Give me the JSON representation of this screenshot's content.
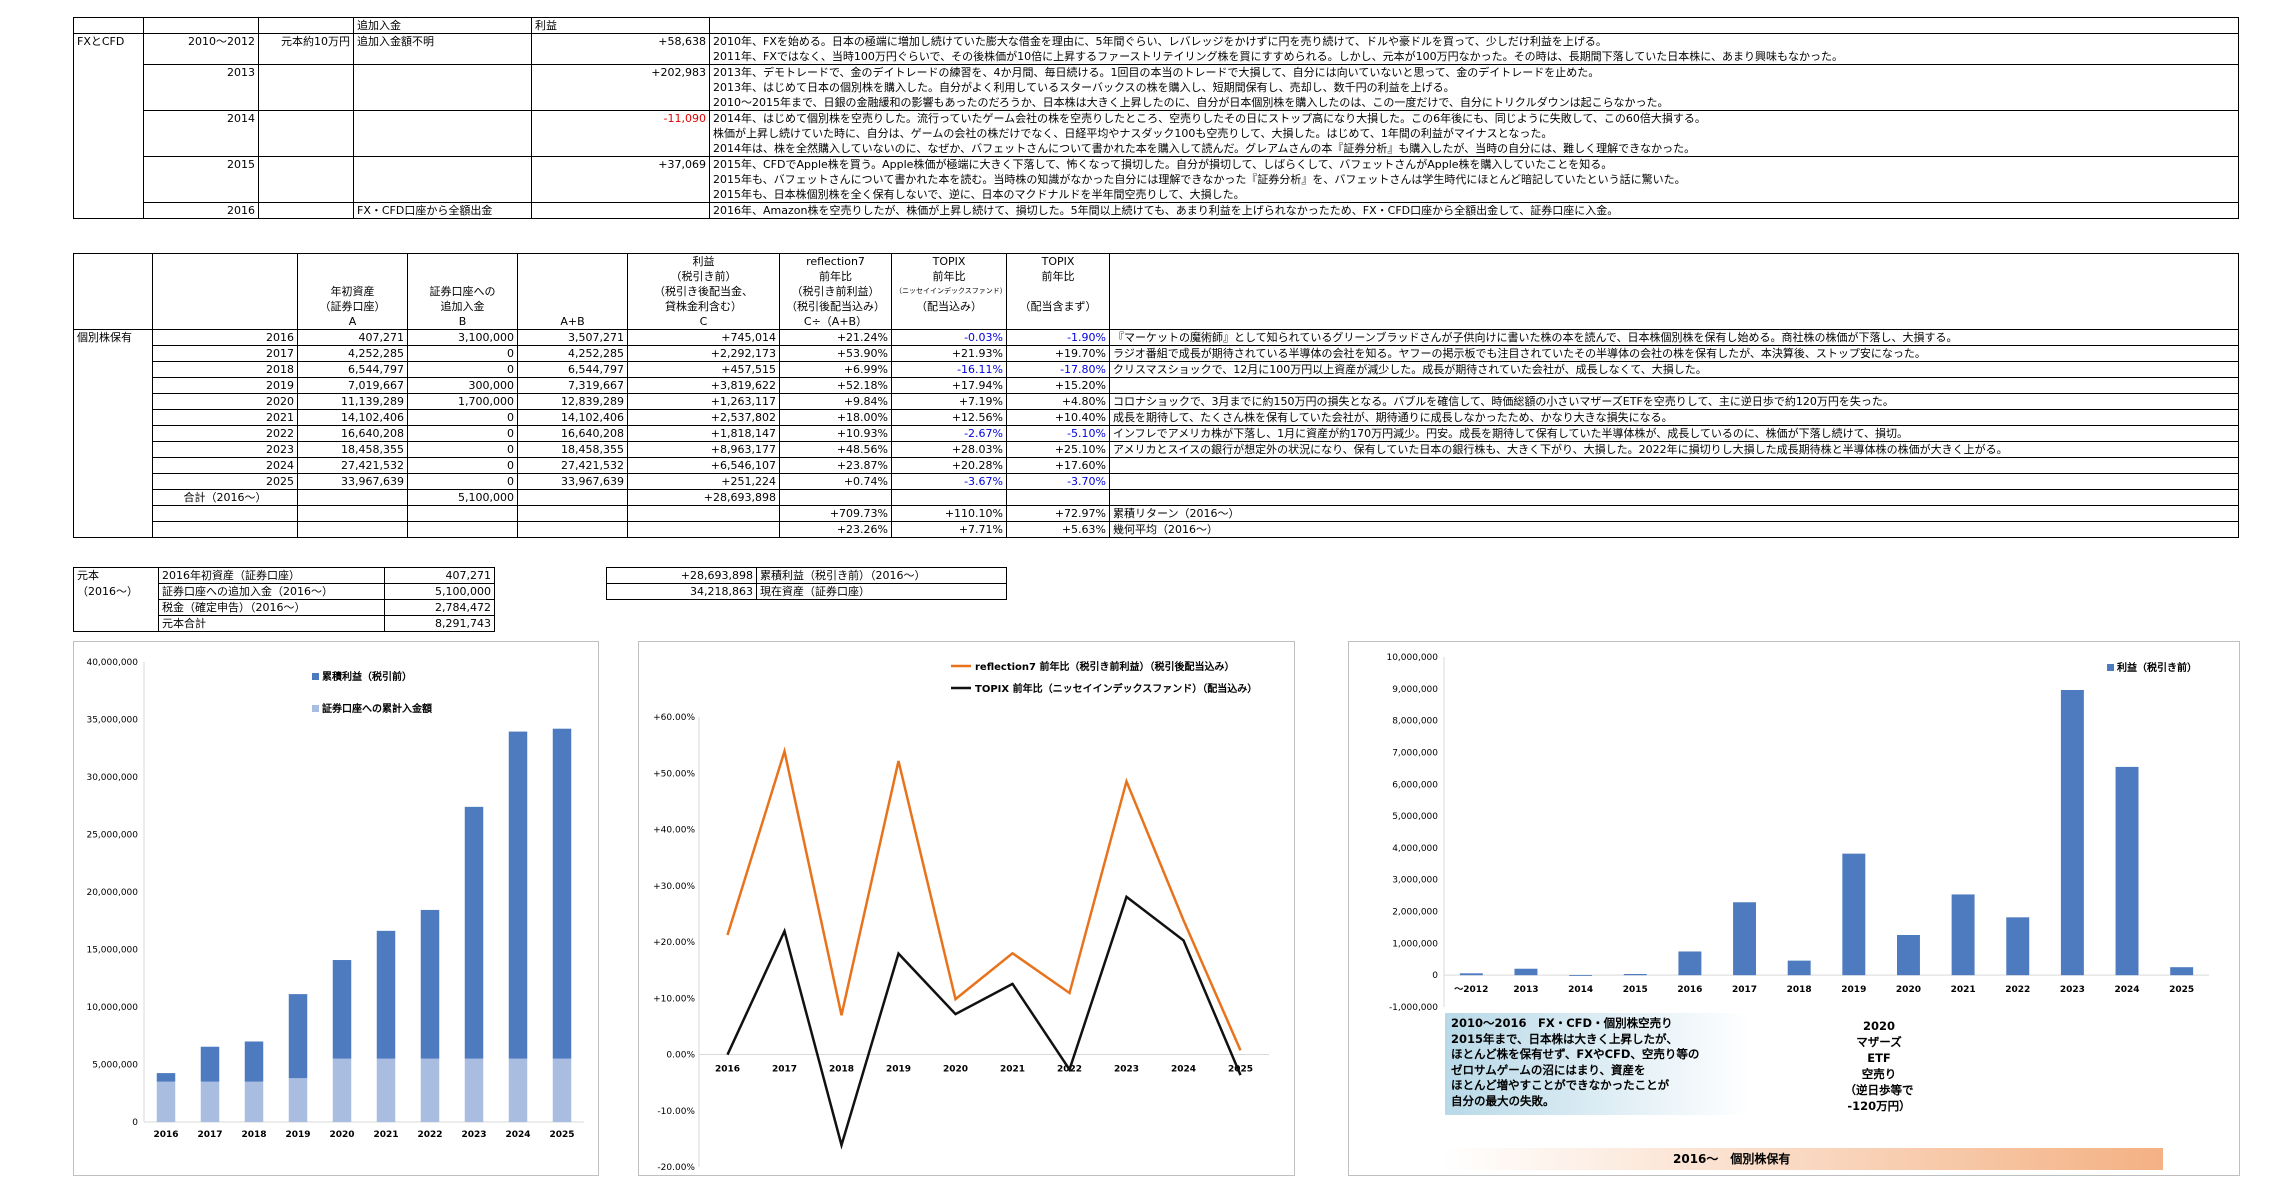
{
  "top_table": {
    "header": {
      "additional": "追加入金",
      "profit": "利益"
    },
    "rows": [
      {
        "label": "FXとCFD",
        "year": "2010～2012",
        "capital": "元本約10万円",
        "additional": "追加入金額不明",
        "profit": "+58,638",
        "profit_color": "#000000",
        "notes": [
          "2010年、FXを始める。日本の極端に増加し続けていた膨大な借金を理由に、5年間ぐらい、レバレッジをかけずに円を売り続けて、ドルや豪ドルを買って、少しだけ利益を上げる。",
          "2011年、FXではなく、当時100万円ぐらいで、その後株価が10倍に上昇するファーストリテイリング株を買にすすめられる。しかし、元本が100万円なかった。その時は、長期間下落していた日本株に、あまり興味もなかった。"
        ]
      },
      {
        "label": "",
        "year": "2013",
        "capital": "",
        "additional": "",
        "profit": "+202,983",
        "profit_color": "#000000",
        "notes": [
          "2013年、デモトレードで、金のデイトレードの練習を、4か月間、毎日続ける。1回目の本当のトレードで大損して、自分には向いていないと思って、金のデイトレードを止めた。",
          "2013年、はじめて日本の個別株を購入した。自分がよく利用しているスターバックスの株を購入し、短期間保有し、売却し、数千円の利益を上げる。",
          "2010～2015年まで、日銀の金融緩和の影響もあったのだろうか、日本株は大きく上昇したのに、自分が日本個別株を購入したのは、この一度だけで、自分にトリクルダウンは起こらなかった。"
        ]
      },
      {
        "label": "",
        "year": "2014",
        "capital": "",
        "additional": "",
        "profit": "-11,090",
        "profit_color": "#e00000",
        "notes": [
          "2014年、はじめて個別株を空売りした。流行っていたゲーム会社の株を空売りしたところ、空売りしたその日にストップ高になり大損した。この6年後にも、同じように失敗して、この60倍大損する。",
          "株価が上昇し続けていた時に、自分は、ゲームの会社の株だけでなく、日経平均やナスダック100も空売りして、大損した。はじめて、1年間の利益がマイナスとなった。",
          "2014年は、株を全然購入していないのに、なぜか、バフェットさんについて書かれた本を購入して読んだ。グレアムさんの本『証券分析』も購入したが、当時の自分には、難しく理解できなかった。"
        ]
      },
      {
        "label": "",
        "year": "2015",
        "capital": "",
        "additional": "",
        "profit": "+37,069",
        "profit_color": "#000000",
        "notes": [
          "2015年、CFDでApple株を買う。Apple株価が極端に大きく下落して、怖くなって損切した。自分が損切して、しばらくして、バフェットさんがApple株を購入していたことを知る。",
          "2015年も、バフェットさんについて書かれた本を読む。当時株の知識がなかった自分には理解できなかった『証券分析』を、バフェットさんは学生時代にほとんど暗記していたという話に驚いた。",
          "2015年も、日本株個別株を全く保有しないで、逆に、日本のマクドナルドを半年間空売りして、大損した。"
        ]
      },
      {
        "label": "",
        "year": "2016",
        "capital": "",
        "additional": "FX・CFD口座から全額出金",
        "profit": "",
        "profit_color": "#000000",
        "notes": [
          "2016年、Amazon株を空売りしたが、株価が上昇し続けて、損切した。5年間以上続けても、あまり利益を上げられなかったため、FX・CFD口座から全額出金して、証券口座に入金。"
        ]
      }
    ]
  },
  "main_table": {
    "header": {
      "col_a": [
        "年初資産",
        "（証券口座）",
        "A"
      ],
      "col_b": [
        "証券口座への",
        "追加入金",
        "B"
      ],
      "col_ab": [
        "A+B"
      ],
      "col_c": [
        "利益",
        "（税引き前）",
        "（税引き後配当金、",
        "貸株金利含む）",
        "C"
      ],
      "col_r7": [
        "reflection7",
        "前年比",
        "（税引き前利益）",
        "（税引後配当込み）",
        "C÷（A+B）"
      ],
      "col_tp1": [
        "TOPIX",
        "前年比",
        "（ニッセイインデックスファンド）",
        "（配当込み）"
      ],
      "col_tp2": [
        "TOPIX",
        "前年比",
        "",
        "（配当含まず）"
      ]
    },
    "section_label": "個別株保有",
    "rows": [
      {
        "year": "2016",
        "a": "407,271",
        "b": "3,100,000",
        "ab": "3,507,271",
        "c": "+745,014",
        "r7": "+21.24%",
        "tp1": "-0.03%",
        "tp1_color": "#0000e0",
        "tp2": "-1.90%",
        "tp2_color": "#0000e0",
        "note": "『マーケットの魔術師』として知られているグリーンブラッドさんが子供向けに書いた株の本を読んで、日本株個別株を保有し始める。商社株の株価が下落し、大損する。"
      },
      {
        "year": "2017",
        "a": "4,252,285",
        "b": "0",
        "ab": "4,252,285",
        "c": "+2,292,173",
        "r7": "+53.90%",
        "tp1": "+21.93%",
        "tp1_color": "#000000",
        "tp2": "+19.70%",
        "tp2_color": "#000000",
        "note": "ラジオ番組で成長が期待されている半導体の会社を知る。ヤフーの掲示板でも注目されていたその半導体の会社の株を保有したが、本決算後、ストップ安になった。"
      },
      {
        "year": "2018",
        "a": "6,544,797",
        "b": "0",
        "ab": "6,544,797",
        "c": "+457,515",
        "r7": "+6.99%",
        "tp1": "-16.11%",
        "tp1_color": "#0000e0",
        "tp2": "-17.80%",
        "tp2_color": "#0000e0",
        "note": "クリスマスショックで、12月に100万円以上資産が減少した。成長が期待されていた会社が、成長しなくて、大損した。"
      },
      {
        "year": "2019",
        "a": "7,019,667",
        "b": "300,000",
        "ab": "7,319,667",
        "c": "+3,819,622",
        "r7": "+52.18%",
        "tp1": "+17.94%",
        "tp1_color": "#000000",
        "tp2": "+15.20%",
        "tp2_color": "#000000",
        "note": ""
      },
      {
        "year": "2020",
        "a": "11,139,289",
        "b": "1,700,000",
        "ab": "12,839,289",
        "c": "+1,263,117",
        "r7": "+9.84%",
        "tp1": "+7.19%",
        "tp1_color": "#000000",
        "tp2": "+4.80%",
        "tp2_color": "#000000",
        "note": "コロナショックで、3月までに約150万円の損失となる。バブルを確信して、時価総額の小さいマザーズETFを空売りして、主に逆日歩で約120万円を失った。"
      },
      {
        "year": "2021",
        "a": "14,102,406",
        "b": "0",
        "ab": "14,102,406",
        "c": "+2,537,802",
        "r7": "+18.00%",
        "tp1": "+12.56%",
        "tp1_color": "#000000",
        "tp2": "+10.40%",
        "tp2_color": "#000000",
        "note": "成長を期待して、たくさん株を保有していた会社が、期待通りに成長しなかったため、かなり大きな損失になる。"
      },
      {
        "year": "2022",
        "a": "16,640,208",
        "b": "0",
        "ab": "16,640,208",
        "c": "+1,818,147",
        "r7": "+10.93%",
        "tp1": "-2.67%",
        "tp1_color": "#0000e0",
        "tp2": "-5.10%",
        "tp2_color": "#0000e0",
        "note": "インフレでアメリカ株が下落し、1月に資産が約170万円減少。円安。成長を期待して保有していた半導体株が、成長しているのに、株価が下落し続けて、損切。"
      },
      {
        "year": "2023",
        "a": "18,458,355",
        "b": "0",
        "ab": "18,458,355",
        "c": "+8,963,177",
        "r7": "+48.56%",
        "tp1": "+28.03%",
        "tp1_color": "#000000",
        "tp2": "+25.10%",
        "tp2_color": "#000000",
        "note": "アメリカとスイスの銀行が想定外の状況になり、保有していた日本の銀行株も、大きく下がり、大損した。2022年に損切りし大損した成長期待株と半導体株の株価が大きく上がる。"
      },
      {
        "year": "2024",
        "a": "27,421,532",
        "b": "0",
        "ab": "27,421,532",
        "c": "+6,546,107",
        "r7": "+23.87%",
        "tp1": "+20.28%",
        "tp1_color": "#000000",
        "tp2": "+17.60%",
        "tp2_color": "#000000",
        "note": ""
      },
      {
        "year": "2025",
        "a": "33,967,639",
        "b": "0",
        "ab": "33,967,639",
        "c": "+251,224",
        "r7": "+0.74%",
        "tp1": "-3.67%",
        "tp1_color": "#0000e0",
        "tp2": "-3.70%",
        "tp2_color": "#0000e0",
        "note": ""
      }
    ],
    "total": {
      "label": "合計（2016～）",
      "b": "5,100,000",
      "c": "+28,693,898"
    },
    "cumulative": {
      "r7": "+709.73%",
      "tp1": "+110.10%",
      "tp2": "+72.97%",
      "label": "累積リターン（2016～）"
    },
    "average": {
      "r7": "+23.26%",
      "tp1": "+7.71%",
      "tp2": "+5.63%",
      "label": "幾何平均（2016～）"
    }
  },
  "principal": {
    "label1": "元本",
    "label2": "（2016～）",
    "rows": [
      {
        "k": "2016年初資産（証券口座）",
        "v": "407,271"
      },
      {
        "k": "証券口座への追加入金（2016～）",
        "v": "5,100,000"
      },
      {
        "k": "税金（確定申告）（2016～）",
        "v": "2,784,472"
      },
      {
        "k": "元本合計",
        "v": "8,291,743"
      }
    ]
  },
  "summary": {
    "rows": [
      {
        "v": "+28,693,898",
        "k": "累積利益（税引き前）（2016～）"
      },
      {
        "v": "34,218,863",
        "k": "現在資産（証券口座）"
      }
    ]
  },
  "charts": {
    "colors": {
      "dark_blue": "#4e7bbf",
      "light_blue": "#a9bde0",
      "orange": "#e8731c",
      "black": "#111111"
    },
    "chart_data": [
      {
        "type": "bar",
        "categories": [
          "2016",
          "2017",
          "2018",
          "2019",
          "2020",
          "2021",
          "2022",
          "2023",
          "2024",
          "2025"
        ],
        "series": [
          {
            "name": "累積利益（税引前）",
            "values": [
              745014,
              3037187,
              3494702,
              7314324,
              8577441,
              11115243,
              12933390,
              21896567,
              28442674,
              28693898
            ]
          },
          {
            "name": "証券口座への累計入金額",
            "values": [
              3507271,
              3507271,
              3507271,
              3807271,
              5507271,
              5507271,
              5507271,
              5507271,
              5507271,
              5507271
            ]
          }
        ],
        "ylim": [
          0,
          40000000
        ],
        "yticks": [
          "0",
          "5,000,000",
          "10,000,000",
          "15,000,000",
          "20,000,000",
          "25,000,000",
          "30,000,000",
          "35,000,000",
          "40,000,000"
        ]
      },
      {
        "type": "line",
        "categories": [
          "2016",
          "2017",
          "2018",
          "2019",
          "2020",
          "2021",
          "2022",
          "2023",
          "2024",
          "2025"
        ],
        "series": [
          {
            "name": "reflection7 前年比（税引き前利益）（税引後配当込み）",
            "values": [
              21.24,
              53.9,
              6.99,
              52.18,
              9.84,
              18.0,
              10.93,
              48.56,
              23.87,
              0.74
            ]
          },
          {
            "name": "TOPIX 前年比（ニッセイインデックスファンド）（配当込み）",
            "values": [
              -0.03,
              21.93,
              -16.11,
              17.94,
              7.19,
              12.56,
              -2.67,
              28.03,
              20.28,
              -3.67
            ]
          }
        ],
        "ylim": [
          -20,
          60
        ],
        "yticks": [
          "-20.00%",
          "-10.00%",
          "0.00%",
          "+10.00%",
          "+20.00%",
          "+30.00%",
          "+40.00%",
          "+50.00%",
          "+60.00%"
        ]
      },
      {
        "type": "bar",
        "categories": [
          "～2012",
          "2013",
          "2014",
          "2015",
          "2016",
          "2017",
          "2018",
          "2019",
          "2020",
          "2021",
          "2022",
          "2023",
          "2024",
          "2025"
        ],
        "series": [
          {
            "name": "利益（税引き前）",
            "values": [
              58638,
              202983,
              -11090,
              37069,
              745014,
              2292173,
              457515,
              3819622,
              1263117,
              2537802,
              1818147,
              8963177,
              6546107,
              251224
            ]
          }
        ],
        "ylim": [
          -1000000,
          10000000
        ],
        "yticks": [
          "-1,000,000",
          "0",
          "1,000,000",
          "2,000,000",
          "3,000,000",
          "4,000,000",
          "5,000,000",
          "6,000,000",
          "7,000,000",
          "8,000,000",
          "9,000,000",
          "10,000,000"
        ]
      }
    ],
    "annotation_left": [
      "2010～2016　FX・CFD・個別株空売り",
      "2015年まで、日本株は大きく上昇したが、",
      "ほとんど株を保有せず、FXやCFD、空売り等の",
      "ゼロサムゲームの沼にはまり、資産を",
      "ほとんど増やすことができなかったことが",
      "自分の最大の失敗。"
    ],
    "annotation_right": [
      "2020",
      "マザーズ",
      "ETF",
      "空売り",
      "（逆日歩等で",
      "-120万円）"
    ],
    "footer_band": "2016～　個別株保有"
  }
}
